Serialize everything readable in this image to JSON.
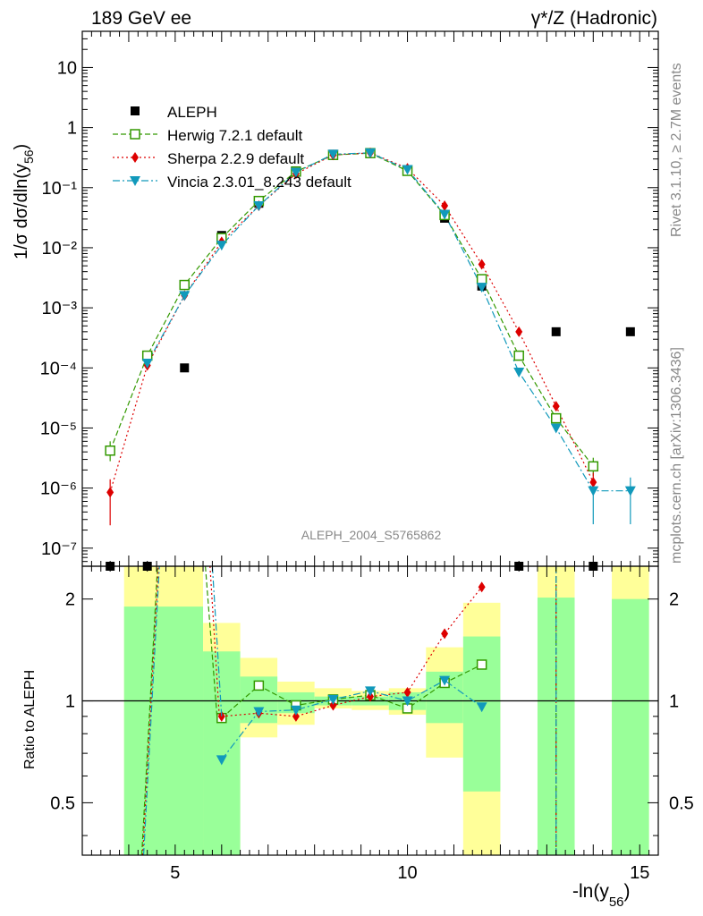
{
  "header": {
    "left_title": "189 GeV ee",
    "right_title": "γ*/Z (Hadronic)"
  },
  "side_labels": {
    "rivet": "Rivet 3.1.10, ≥ 2.7M events",
    "mcplots": "mcplots.cern.ch [arXiv:1306.3436]"
  },
  "analysis_label": "ALEPH_2004_S5765862",
  "chart_data": [
    {
      "type": "scatter",
      "role": "main",
      "ylabel": "1/σ dσ/dln(y56)",
      "yscale": "log",
      "ylim": [
        5e-08,
        40
      ],
      "xlim": [
        3,
        15.4
      ],
      "y_ticks": [
        "10⁻⁷",
        "10⁻⁶",
        "10⁻⁵",
        "10⁻⁴",
        "10⁻³",
        "10⁻²",
        "10⁻¹",
        "1",
        "10"
      ],
      "legend_position": "top-left",
      "series": [
        {
          "name": "ALEPH",
          "style": "data",
          "color": "#000000",
          "x": [
            3.6,
            4.4,
            5.2,
            6.0,
            6.8,
            7.6,
            8.4,
            9.2,
            10.0,
            10.8,
            11.6,
            12.4,
            13.2,
            14.0,
            14.8
          ],
          "y": [
            5e-08,
            5e-08,
            0.0001,
            0.016,
            0.055,
            0.19,
            0.36,
            0.37,
            0.2,
            0.031,
            0.0023,
            5e-08,
            0.0004,
            5e-08,
            0.0004
          ]
        },
        {
          "name": "Herwig 7.2.1 default",
          "style": "open-square",
          "color": "#339900",
          "x": [
            3.6,
            4.4,
            5.2,
            6.0,
            6.8,
            7.6,
            8.4,
            9.2,
            10.0,
            10.8,
            11.6,
            12.4,
            13.2,
            14.0
          ],
          "y": [
            4.2e-06,
            0.00016,
            0.0024,
            0.0145,
            0.06,
            0.185,
            0.35,
            0.375,
            0.19,
            0.035,
            0.003,
            0.00016,
            1.45e-05,
            2.3e-06
          ]
        },
        {
          "name": "Sherpa 2.2.9 default",
          "style": "diamond",
          "color": "#dd0000",
          "x": [
            3.6,
            4.4,
            5.2,
            6.0,
            6.8,
            7.6,
            8.4,
            9.2,
            10.0,
            10.8,
            11.6,
            12.4,
            13.2,
            14.0
          ],
          "y": [
            8.5e-07,
            0.00011,
            0.0016,
            0.0125,
            0.05,
            0.17,
            0.35,
            0.38,
            0.21,
            0.05,
            0.0053,
            0.0004,
            2.3e-05,
            1.25e-06
          ]
        },
        {
          "name": "Vincia 2.3.01_8.243 default",
          "style": "triangle-down",
          "color": "#1199bb",
          "x": [
            4.4,
            5.2,
            6.0,
            6.8,
            7.6,
            8.4,
            9.2,
            10.0,
            10.8,
            11.6,
            12.4,
            13.2,
            14.0,
            14.8
          ],
          "y": [
            0.00012,
            0.0016,
            0.011,
            0.05,
            0.18,
            0.36,
            0.38,
            0.2,
            0.036,
            0.0022,
            8.5e-05,
            1e-05,
            9e-07,
            9e-07
          ]
        }
      ]
    },
    {
      "type": "scatter",
      "role": "ratio",
      "ylabel": "Ratio to ALEPH",
      "xlabel": "-ln(y56)",
      "yscale": "log",
      "ylim": [
        0.35,
        2.5
      ],
      "xlim": [
        3,
        15.4
      ],
      "x_ticks": [
        "5",
        "10",
        "15"
      ],
      "y_ticks": [
        "0.5",
        "1",
        "2"
      ],
      "reference_line": 1,
      "bands": [
        {
          "x0": 3.9,
          "x1": 5.6,
          "in_lo": 0.3,
          "in_hi": 1.9,
          "out_lo": 0.3,
          "out_hi": 2.6
        },
        {
          "x0": 5.6,
          "x1": 6.4,
          "in_lo": 0.3,
          "in_hi": 1.4,
          "out_lo": 0.3,
          "out_hi": 1.7
        },
        {
          "x0": 6.4,
          "x1": 7.2,
          "in_lo": 0.86,
          "in_hi": 1.18,
          "out_lo": 0.78,
          "out_hi": 1.34
        },
        {
          "x0": 7.2,
          "x1": 8.0,
          "in_lo": 0.92,
          "in_hi": 1.06,
          "out_lo": 0.85,
          "out_hi": 1.14
        },
        {
          "x0": 8.0,
          "x1": 8.8,
          "in_lo": 0.97,
          "in_hi": 1.03,
          "out_lo": 0.95,
          "out_hi": 1.09
        },
        {
          "x0": 8.8,
          "x1": 9.6,
          "in_lo": 0.97,
          "in_hi": 1.03,
          "out_lo": 0.94,
          "out_hi": 1.07
        },
        {
          "x0": 9.6,
          "x1": 10.4,
          "in_lo": 0.94,
          "in_hi": 1.06,
          "out_lo": 0.91,
          "out_hi": 1.09
        },
        {
          "x0": 10.4,
          "x1": 11.2,
          "in_lo": 0.86,
          "in_hi": 1.22,
          "out_lo": 0.68,
          "out_hi": 1.44
        },
        {
          "x0": 11.2,
          "x1": 12.0,
          "in_lo": 0.54,
          "in_hi": 1.55,
          "out_lo": 0.3,
          "out_hi": 1.95
        },
        {
          "x0": 12.8,
          "x1": 13.6,
          "in_lo": 0.3,
          "in_hi": 2.02,
          "out_lo": 0.3,
          "out_hi": 2.6
        },
        {
          "x0": 14.4,
          "x1": 15.2,
          "in_lo": 0.3,
          "in_hi": 2.0,
          "out_lo": 0.3,
          "out_hi": 2.6
        }
      ],
      "series": [
        {
          "name": "Herwig 7.2.1 default",
          "style": "open-square",
          "color": "#339900",
          "x": [
            6.0,
            6.8,
            7.6,
            8.4,
            9.2,
            10.0,
            10.8,
            11.6
          ],
          "y": [
            0.89,
            1.11,
            0.97,
            1.01,
            1.04,
            0.95,
            1.13,
            1.28
          ]
        },
        {
          "name": "Sherpa 2.2.9 default",
          "style": "diamond",
          "color": "#dd0000",
          "x": [
            6.0,
            6.8,
            7.6,
            8.4,
            9.2,
            10.0,
            10.8,
            11.6
          ],
          "y": [
            0.9,
            0.92,
            0.9,
            0.97,
            1.03,
            1.06,
            1.58,
            2.17
          ]
        },
        {
          "name": "Vincia 2.3.01_8.243 default",
          "style": "triangle-down",
          "color": "#1199bb",
          "x": [
            6.0,
            6.8,
            7.6,
            8.4,
            9.2,
            10.0,
            10.8,
            11.6
          ],
          "y": [
            0.67,
            0.93,
            0.94,
            1.01,
            1.07,
            1.0,
            1.15,
            0.96
          ]
        }
      ]
    }
  ]
}
